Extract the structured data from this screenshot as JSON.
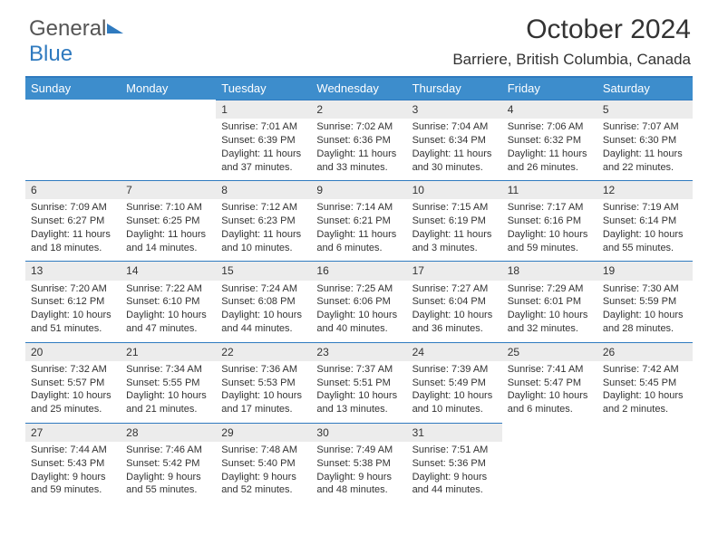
{
  "brand": {
    "part1": "General",
    "part2": "Blue"
  },
  "title": "October 2024",
  "location": "Barriere, British Columbia, Canada",
  "colors": {
    "header_bg": "#3d8dcc",
    "accent_line": "#2f7abf",
    "daynum_bg": "#ececec",
    "text": "#333333",
    "page_bg": "#ffffff"
  },
  "typography": {
    "title_fontsize": 30,
    "location_fontsize": 17,
    "dayheader_fontsize": 13,
    "daynum_fontsize": 12,
    "cell_fontsize": 11
  },
  "day_headers": [
    "Sunday",
    "Monday",
    "Tuesday",
    "Wednesday",
    "Thursday",
    "Friday",
    "Saturday"
  ],
  "weeks": [
    [
      null,
      null,
      {
        "n": "1",
        "sunrise": "7:01 AM",
        "sunset": "6:39 PM",
        "daylight": "11 hours and 37 minutes."
      },
      {
        "n": "2",
        "sunrise": "7:02 AM",
        "sunset": "6:36 PM",
        "daylight": "11 hours and 33 minutes."
      },
      {
        "n": "3",
        "sunrise": "7:04 AM",
        "sunset": "6:34 PM",
        "daylight": "11 hours and 30 minutes."
      },
      {
        "n": "4",
        "sunrise": "7:06 AM",
        "sunset": "6:32 PM",
        "daylight": "11 hours and 26 minutes."
      },
      {
        "n": "5",
        "sunrise": "7:07 AM",
        "sunset": "6:30 PM",
        "daylight": "11 hours and 22 minutes."
      }
    ],
    [
      {
        "n": "6",
        "sunrise": "7:09 AM",
        "sunset": "6:27 PM",
        "daylight": "11 hours and 18 minutes."
      },
      {
        "n": "7",
        "sunrise": "7:10 AM",
        "sunset": "6:25 PM",
        "daylight": "11 hours and 14 minutes."
      },
      {
        "n": "8",
        "sunrise": "7:12 AM",
        "sunset": "6:23 PM",
        "daylight": "11 hours and 10 minutes."
      },
      {
        "n": "9",
        "sunrise": "7:14 AM",
        "sunset": "6:21 PM",
        "daylight": "11 hours and 6 minutes."
      },
      {
        "n": "10",
        "sunrise": "7:15 AM",
        "sunset": "6:19 PM",
        "daylight": "11 hours and 3 minutes."
      },
      {
        "n": "11",
        "sunrise": "7:17 AM",
        "sunset": "6:16 PM",
        "daylight": "10 hours and 59 minutes."
      },
      {
        "n": "12",
        "sunrise": "7:19 AM",
        "sunset": "6:14 PM",
        "daylight": "10 hours and 55 minutes."
      }
    ],
    [
      {
        "n": "13",
        "sunrise": "7:20 AM",
        "sunset": "6:12 PM",
        "daylight": "10 hours and 51 minutes."
      },
      {
        "n": "14",
        "sunrise": "7:22 AM",
        "sunset": "6:10 PM",
        "daylight": "10 hours and 47 minutes."
      },
      {
        "n": "15",
        "sunrise": "7:24 AM",
        "sunset": "6:08 PM",
        "daylight": "10 hours and 44 minutes."
      },
      {
        "n": "16",
        "sunrise": "7:25 AM",
        "sunset": "6:06 PM",
        "daylight": "10 hours and 40 minutes."
      },
      {
        "n": "17",
        "sunrise": "7:27 AM",
        "sunset": "6:04 PM",
        "daylight": "10 hours and 36 minutes."
      },
      {
        "n": "18",
        "sunrise": "7:29 AM",
        "sunset": "6:01 PM",
        "daylight": "10 hours and 32 minutes."
      },
      {
        "n": "19",
        "sunrise": "7:30 AM",
        "sunset": "5:59 PM",
        "daylight": "10 hours and 28 minutes."
      }
    ],
    [
      {
        "n": "20",
        "sunrise": "7:32 AM",
        "sunset": "5:57 PM",
        "daylight": "10 hours and 25 minutes."
      },
      {
        "n": "21",
        "sunrise": "7:34 AM",
        "sunset": "5:55 PM",
        "daylight": "10 hours and 21 minutes."
      },
      {
        "n": "22",
        "sunrise": "7:36 AM",
        "sunset": "5:53 PM",
        "daylight": "10 hours and 17 minutes."
      },
      {
        "n": "23",
        "sunrise": "7:37 AM",
        "sunset": "5:51 PM",
        "daylight": "10 hours and 13 minutes."
      },
      {
        "n": "24",
        "sunrise": "7:39 AM",
        "sunset": "5:49 PM",
        "daylight": "10 hours and 10 minutes."
      },
      {
        "n": "25",
        "sunrise": "7:41 AM",
        "sunset": "5:47 PM",
        "daylight": "10 hours and 6 minutes."
      },
      {
        "n": "26",
        "sunrise": "7:42 AM",
        "sunset": "5:45 PM",
        "daylight": "10 hours and 2 minutes."
      }
    ],
    [
      {
        "n": "27",
        "sunrise": "7:44 AM",
        "sunset": "5:43 PM",
        "daylight": "9 hours and 59 minutes."
      },
      {
        "n": "28",
        "sunrise": "7:46 AM",
        "sunset": "5:42 PM",
        "daylight": "9 hours and 55 minutes."
      },
      {
        "n": "29",
        "sunrise": "7:48 AM",
        "sunset": "5:40 PM",
        "daylight": "9 hours and 52 minutes."
      },
      {
        "n": "30",
        "sunrise": "7:49 AM",
        "sunset": "5:38 PM",
        "daylight": "9 hours and 48 minutes."
      },
      {
        "n": "31",
        "sunrise": "7:51 AM",
        "sunset": "5:36 PM",
        "daylight": "9 hours and 44 minutes."
      },
      null,
      null
    ]
  ],
  "labels": {
    "sunrise": "Sunrise: ",
    "sunset": "Sunset: ",
    "daylight": "Daylight: "
  }
}
